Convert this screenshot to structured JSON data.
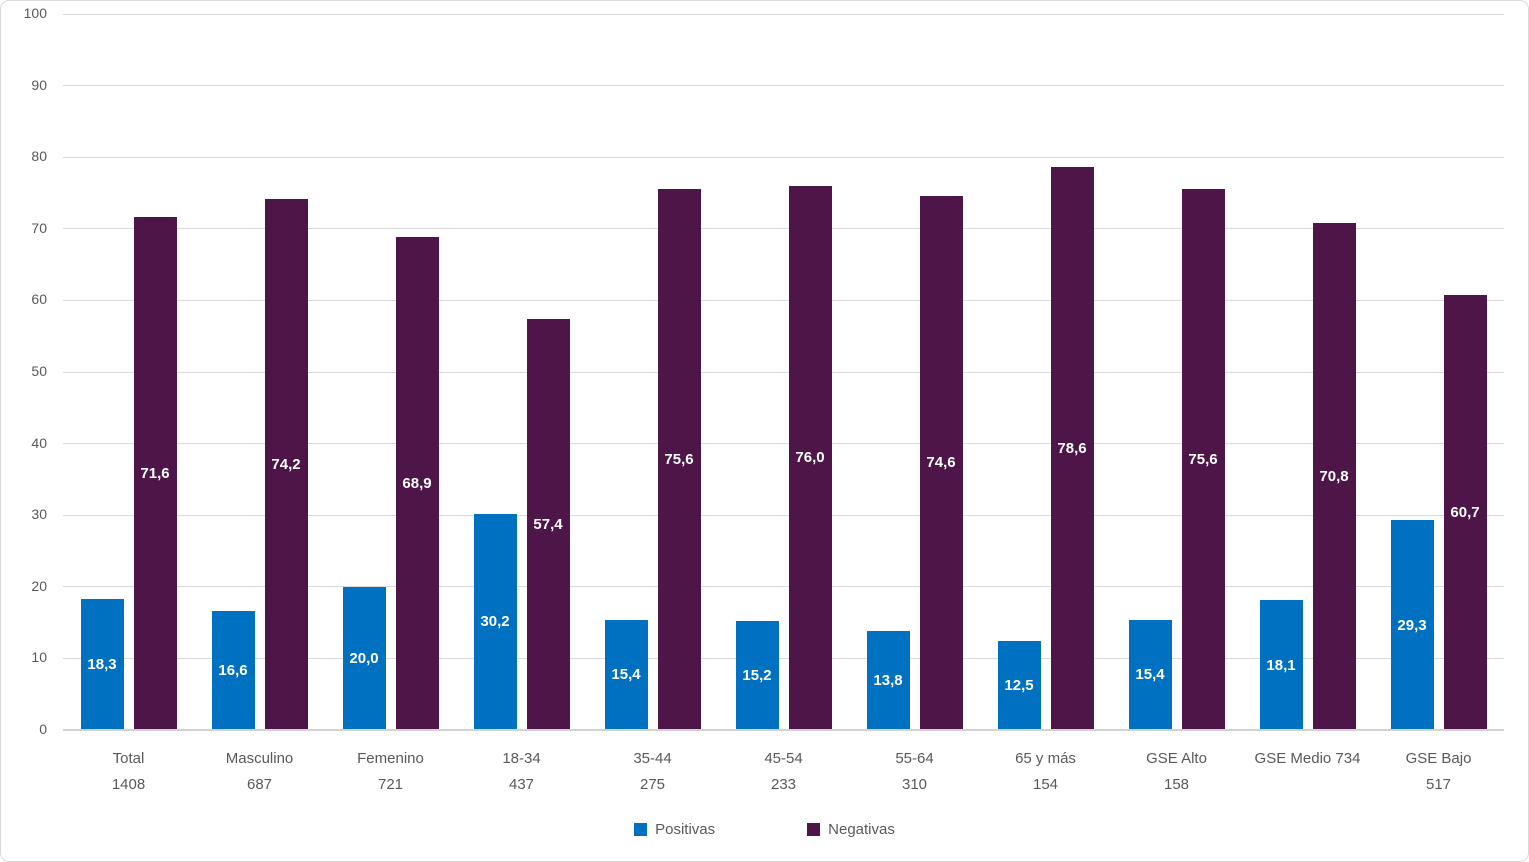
{
  "figure": {
    "background": "#ffffff",
    "border_color": "#d9d9d9"
  },
  "chart_data": {
    "type": "bar",
    "title": "",
    "xlabel": "",
    "ylabel": "",
    "grid": true,
    "categories": [
      [
        "Total",
        "1408"
      ],
      [
        "Masculino",
        "687"
      ],
      [
        "Femenino",
        "721"
      ],
      [
        "18-34",
        "437"
      ],
      [
        "35-44",
        "275"
      ],
      [
        "45-54",
        "233"
      ],
      [
        "55-64",
        "310"
      ],
      [
        "65 y más",
        "154"
      ],
      [
        "GSE Alto",
        "158"
      ],
      [
        "GSE Medio 734"
      ],
      [
        "GSE Bajo",
        "517"
      ]
    ],
    "series": [
      {
        "name": "Positivas",
        "color": "#0070c0",
        "values": [
          18.3,
          16.6,
          20.0,
          30.2,
          15.4,
          15.2,
          13.8,
          12.5,
          15.4,
          18.1,
          29.3
        ],
        "labels": [
          "18,3",
          "16,6",
          "20,0",
          "30,2",
          "15,4",
          "15,2",
          "13,8",
          "12,5",
          "15,4",
          "18,1",
          "29,3"
        ]
      },
      {
        "name": "Negativas",
        "color": "#4d1548",
        "values": [
          71.6,
          74.2,
          68.9,
          57.4,
          75.6,
          76.0,
          74.6,
          78.6,
          75.6,
          70.8,
          60.7
        ],
        "labels": [
          "71,6",
          "74,2",
          "68,9",
          "57,4",
          "75,6",
          "76,0",
          "74,6",
          "78,6",
          "75,6",
          "70,8",
          "60,7"
        ]
      }
    ],
    "y_axis": {
      "min": 0,
      "max": 100,
      "step": 10,
      "tick_labels": [
        "0",
        "10",
        "20",
        "30",
        "40",
        "50",
        "60",
        "70",
        "80",
        "90",
        "100"
      ]
    },
    "legend": {
      "position": "bottom"
    },
    "style": {
      "axis_text_color": "#595959",
      "gridline_color": "#d9d9d9",
      "value_label_color": "#ffffff"
    }
  }
}
